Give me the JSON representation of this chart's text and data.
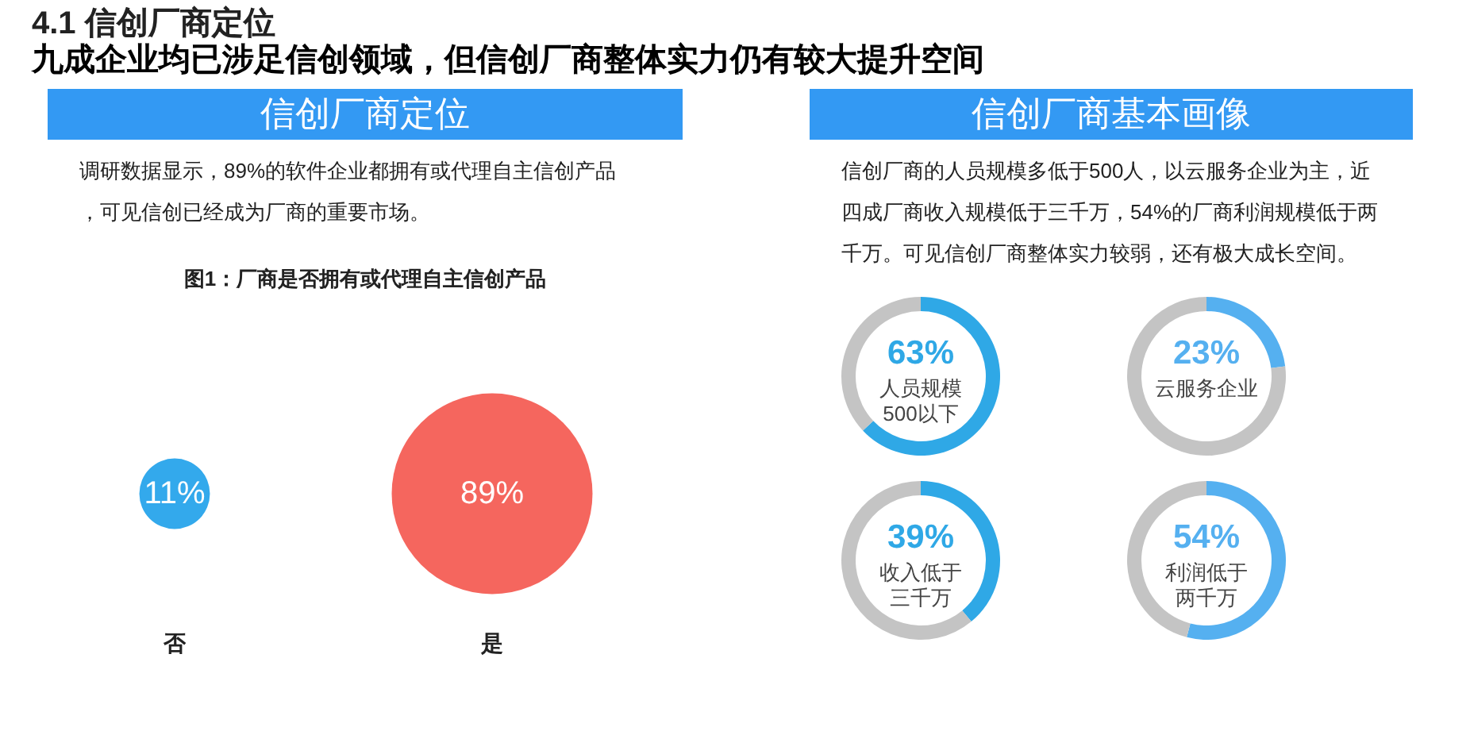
{
  "chart_data": [
    {
      "type": "other",
      "title": "4.1 信创厂商定位",
      "subtitle": "九成企业均已涉足信创领域，但信创厂商整体实力仍有较大提升空间"
    },
    {
      "type": "other",
      "title": "图1：厂商是否拥有或代理自主信创产品",
      "annotations": [
        "信创厂商定位",
        "调研数据显示，89%的软件企业都拥有或代理自主信创产品，可见信创已经成为厂商的重要市场。"
      ],
      "categories": [
        "否",
        "是"
      ],
      "values": [
        11,
        89
      ],
      "colors": [
        "#33a9ec",
        "#f5665e"
      ],
      "value_labels": [
        "11%",
        "89%"
      ]
    },
    {
      "type": "other",
      "annotations": [
        "信创厂商基本画像",
        "信创厂商的人员规模多低于500人，以云服务企业为主，近四成厂商收入规模低于三千万，54%的厂商利润规模低于两千万。可见信创厂商整体实力较弱，还有极大成长空间。"
      ]
    },
    {
      "type": "donut",
      "title": "人员规模500以下",
      "categories": [
        null,
        null
      ],
      "values": [
        63,
        37
      ],
      "colors": [
        "#2fa8e6",
        "#c4c4c4"
      ],
      "value_labels": [
        "63%",
        null
      ]
    },
    {
      "type": "donut",
      "title": "云服务企业",
      "categories": [
        null,
        null
      ],
      "values": [
        23,
        77
      ],
      "colors": [
        "#55b0f0",
        "#c4c4c4"
      ],
      "value_labels": [
        "23%",
        null
      ]
    },
    {
      "type": "donut",
      "title": "收入低于三千万",
      "categories": [
        null,
        null
      ],
      "values": [
        39,
        61
      ],
      "colors": [
        "#2fa8e6",
        "#c4c4c4"
      ],
      "value_labels": [
        "39%",
        null
      ]
    },
    {
      "type": "donut",
      "title": "利润低于两千万",
      "categories": [
        null,
        null
      ],
      "values": [
        54,
        46
      ],
      "colors": [
        "#55b0f0",
        "#c4c4c4"
      ],
      "value_labels": [
        "54%",
        null
      ]
    }
  ]
}
